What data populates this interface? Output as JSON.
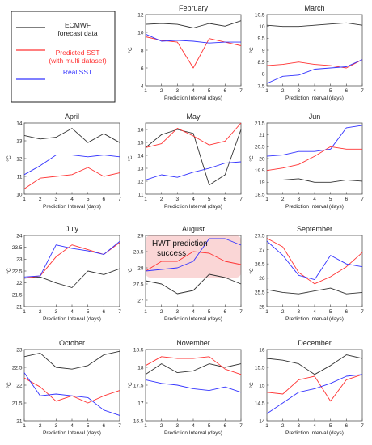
{
  "legend": {
    "entries": [
      {
        "label_lines": [
          "ECMWF",
          "forecast data"
        ],
        "color": "#333333"
      },
      {
        "label_lines": [
          "Predicted SST",
          "(with multi dataset)"
        ],
        "color": "#ff3333"
      },
      {
        "label_lines": [
          "Real SST"
        ],
        "color": "#3333ff"
      }
    ]
  },
  "chart_data": [
    {
      "type": "line",
      "title": "February",
      "xlabel": "Prediction Interval (days)",
      "ylabel": "°C",
      "x": [
        1,
        2,
        3,
        4,
        5,
        6,
        7
      ],
      "xticks": [
        1,
        2,
        3,
        4,
        5,
        6,
        7
      ],
      "ylim": [
        4,
        12
      ],
      "yticks": [
        4,
        6,
        8,
        10,
        12
      ],
      "series": [
        {
          "values": [
            10.9,
            11.0,
            10.9,
            10.5,
            11.0,
            10.7,
            11.3
          ],
          "color": "#333333"
        },
        {
          "values": [
            9.5,
            9.1,
            8.9,
            6.0,
            9.3,
            8.9,
            8.5
          ],
          "color": "#ff3333"
        },
        {
          "values": [
            9.8,
            9.0,
            9.1,
            9.0,
            8.8,
            8.9,
            8.9
          ],
          "color": "#3333ff"
        }
      ]
    },
    {
      "type": "line",
      "title": "March",
      "xlabel": "Prediction Interval (days)",
      "ylabel": "°C",
      "x": [
        1,
        2,
        3,
        4,
        5,
        6,
        7
      ],
      "xticks": [
        1,
        2,
        3,
        4,
        5,
        6,
        7
      ],
      "ylim": [
        7.5,
        10.5
      ],
      "yticks": [
        7.5,
        8,
        8.5,
        9,
        9.5,
        10,
        10.5
      ],
      "series": [
        {
          "values": [
            10.05,
            10.0,
            10.0,
            10.05,
            10.1,
            10.15,
            10.05
          ],
          "color": "#333333"
        },
        {
          "values": [
            8.35,
            8.4,
            8.5,
            8.4,
            8.35,
            8.25,
            8.6
          ],
          "color": "#ff3333"
        },
        {
          "values": [
            7.6,
            7.9,
            7.95,
            8.2,
            8.25,
            8.3,
            8.6
          ],
          "color": "#3333ff"
        }
      ]
    },
    {
      "type": "line",
      "title": "April",
      "xlabel": "Prediction Interval (days)",
      "ylabel": "°C",
      "x": [
        1,
        2,
        3,
        4,
        5,
        6,
        7
      ],
      "xticks": [
        1,
        2,
        3,
        4,
        5,
        6,
        7
      ],
      "ylim": [
        10,
        14
      ],
      "yticks": [
        10,
        11,
        12,
        13,
        14
      ],
      "series": [
        {
          "values": [
            13.3,
            13.1,
            13.2,
            13.7,
            12.9,
            13.4,
            12.9
          ],
          "color": "#333333"
        },
        {
          "values": [
            10.3,
            10.9,
            11.0,
            11.1,
            11.5,
            11.0,
            11.2
          ],
          "color": "#ff3333"
        },
        {
          "values": [
            11.1,
            11.6,
            12.2,
            12.2,
            12.1,
            12.2,
            12.1
          ],
          "color": "#3333ff"
        }
      ]
    },
    {
      "type": "line",
      "title": "May",
      "xlabel": "Prediction Interval (days)",
      "ylabel": "°C",
      "x": [
        1,
        2,
        3,
        4,
        5,
        6,
        7
      ],
      "xticks": [
        1,
        2,
        3,
        4,
        5,
        6,
        7
      ],
      "ylim": [
        11,
        16.5
      ],
      "yticks": [
        11,
        12,
        13,
        14,
        15,
        16
      ],
      "series": [
        {
          "values": [
            14.6,
            15.6,
            16.0,
            15.7,
            11.7,
            12.5,
            16.0
          ],
          "color": "#333333"
        },
        {
          "values": [
            14.6,
            14.9,
            16.1,
            15.5,
            14.8,
            15.1,
            16.5
          ],
          "color": "#ff3333"
        },
        {
          "values": [
            12.1,
            12.5,
            12.3,
            12.7,
            13.0,
            13.4,
            13.5
          ],
          "color": "#3333ff"
        }
      ]
    },
    {
      "type": "line",
      "title": "Jun",
      "xlabel": "Prediction Interval (days)",
      "ylabel": "°C",
      "x": [
        1,
        2,
        3,
        4,
        5,
        6,
        7
      ],
      "xticks": [
        1,
        2,
        3,
        4,
        5,
        6,
        7
      ],
      "ylim": [
        18.5,
        21.5
      ],
      "yticks": [
        18.5,
        19,
        19.5,
        20,
        20.5,
        21,
        21.5
      ],
      "series": [
        {
          "values": [
            19.1,
            19.1,
            19.15,
            19.0,
            19.0,
            19.1,
            19.05
          ],
          "color": "#333333"
        },
        {
          "values": [
            19.5,
            19.6,
            19.75,
            20.1,
            20.5,
            20.4,
            20.4
          ],
          "color": "#ff3333"
        },
        {
          "values": [
            20.1,
            20.15,
            20.3,
            20.3,
            20.4,
            21.3,
            21.4
          ],
          "color": "#3333ff"
        }
      ]
    },
    {
      "type": "line",
      "title": "July",
      "xlabel": "Prediction Interval (days)",
      "ylabel": "°C",
      "x": [
        1,
        2,
        3,
        4,
        5,
        6,
        7
      ],
      "xticks": [
        1,
        2,
        3,
        4,
        5,
        6,
        7
      ],
      "ylim": [
        21,
        24
      ],
      "yticks": [
        21,
        21.5,
        22,
        22.5,
        23,
        23.5,
        24
      ],
      "series": [
        {
          "values": [
            22.2,
            22.25,
            22.0,
            21.8,
            22.5,
            22.35,
            22.6
          ],
          "color": "#333333"
        },
        {
          "values": [
            22.2,
            22.3,
            23.1,
            23.6,
            23.4,
            23.2,
            23.7
          ],
          "color": "#ff3333"
        },
        {
          "values": [
            22.25,
            22.3,
            23.6,
            23.45,
            23.35,
            23.2,
            23.75
          ],
          "color": "#3333ff"
        }
      ]
    },
    {
      "type": "line",
      "title": "August",
      "xlabel": "Prediction Interval (days)",
      "ylabel": "°C",
      "x": [
        1,
        2,
        3,
        4,
        5,
        6,
        7
      ],
      "xticks": [
        1,
        2,
        3,
        4,
        5,
        6,
        7
      ],
      "ylim": [
        26.8,
        29
      ],
      "yticks": [
        27,
        27.5,
        28,
        28.5,
        29
      ],
      "annotation": "HWT prediction success",
      "annotation_region": {
        "x": [
          1,
          7
        ],
        "y": [
          27.7,
          29
        ]
      },
      "series": [
        {
          "values": [
            27.6,
            27.5,
            27.2,
            27.3,
            27.8,
            27.7,
            27.5
          ],
          "color": "#333333"
        },
        {
          "values": [
            27.9,
            28.2,
            28.2,
            28.5,
            28.45,
            28.2,
            28.1
          ],
          "color": "#ff3333"
        },
        {
          "values": [
            27.9,
            27.95,
            28.0,
            28.2,
            28.9,
            28.9,
            28.7
          ],
          "color": "#3333ff"
        }
      ]
    },
    {
      "type": "line",
      "title": "September",
      "xlabel": "Prediction Interval (days)",
      "ylabel": "°C",
      "x": [
        1,
        2,
        3,
        4,
        5,
        6,
        7
      ],
      "xticks": [
        1,
        2,
        3,
        4,
        5,
        6,
        7
      ],
      "ylim": [
        25,
        27.5
      ],
      "yticks": [
        25,
        25.5,
        26,
        26.5,
        27,
        27.5
      ],
      "series": [
        {
          "values": [
            25.6,
            25.5,
            25.45,
            25.55,
            25.65,
            25.45,
            25.5
          ],
          "color": "#333333"
        },
        {
          "values": [
            27.4,
            27.1,
            26.2,
            25.8,
            26.05,
            26.4,
            26.9
          ],
          "color": "#ff3333"
        },
        {
          "values": [
            27.3,
            26.8,
            26.1,
            25.95,
            26.8,
            26.5,
            26.4
          ],
          "color": "#3333ff"
        }
      ]
    },
    {
      "type": "line",
      "title": "October",
      "xlabel": "Prediction Interval (days)",
      "ylabel": "°C",
      "x": [
        1,
        2,
        3,
        4,
        5,
        6,
        7
      ],
      "xticks": [
        1,
        2,
        3,
        4,
        5,
        6,
        7
      ],
      "ylim": [
        21,
        23
      ],
      "yticks": [
        21,
        21.5,
        22,
        22.5,
        23
      ],
      "series": [
        {
          "values": [
            22.8,
            22.9,
            22.5,
            22.45,
            22.55,
            22.85,
            22.95
          ],
          "color": "#333333"
        },
        {
          "values": [
            22.2,
            21.95,
            21.55,
            21.7,
            21.5,
            21.7,
            21.85
          ],
          "color": "#ff3333"
        },
        {
          "values": [
            22.35,
            21.7,
            21.75,
            21.7,
            21.65,
            21.3,
            21.15
          ],
          "color": "#3333ff"
        }
      ]
    },
    {
      "type": "line",
      "title": "November",
      "xlabel": "Prediction Interval (days)",
      "ylabel": "°C",
      "x": [
        1,
        2,
        3,
        4,
        5,
        6,
        7
      ],
      "xticks": [
        1,
        2,
        3,
        4,
        5,
        6,
        7
      ],
      "ylim": [
        16.5,
        18.5
      ],
      "yticks": [
        16.5,
        17,
        17.5,
        18,
        18.5
      ],
      "series": [
        {
          "values": [
            17.8,
            18.1,
            17.85,
            17.9,
            18.1,
            18.0,
            18.1
          ],
          "color": "#333333"
        },
        {
          "values": [
            18.05,
            18.3,
            18.25,
            18.25,
            18.3,
            17.95,
            17.8
          ],
          "color": "#ff3333"
        },
        {
          "values": [
            17.65,
            17.55,
            17.5,
            17.4,
            17.35,
            17.45,
            17.3
          ],
          "color": "#3333ff"
        }
      ]
    },
    {
      "type": "line",
      "title": "December",
      "xlabel": "Prediction Interval (days)",
      "ylabel": "°C",
      "x": [
        1,
        2,
        3,
        4,
        5,
        6,
        7
      ],
      "xticks": [
        1,
        2,
        3,
        4,
        5,
        6,
        7
      ],
      "ylim": [
        14,
        16
      ],
      "yticks": [
        14,
        14.5,
        15,
        15.5,
        16
      ],
      "series": [
        {
          "values": [
            15.75,
            15.7,
            15.6,
            15.3,
            15.55,
            15.85,
            15.75
          ],
          "color": "#333333"
        },
        {
          "values": [
            14.8,
            14.75,
            15.15,
            15.25,
            14.55,
            15.15,
            15.3
          ],
          "color": "#ff3333"
        },
        {
          "values": [
            14.2,
            14.5,
            14.8,
            14.9,
            15.05,
            15.25,
            15.3
          ],
          "color": "#3333ff"
        }
      ]
    }
  ]
}
